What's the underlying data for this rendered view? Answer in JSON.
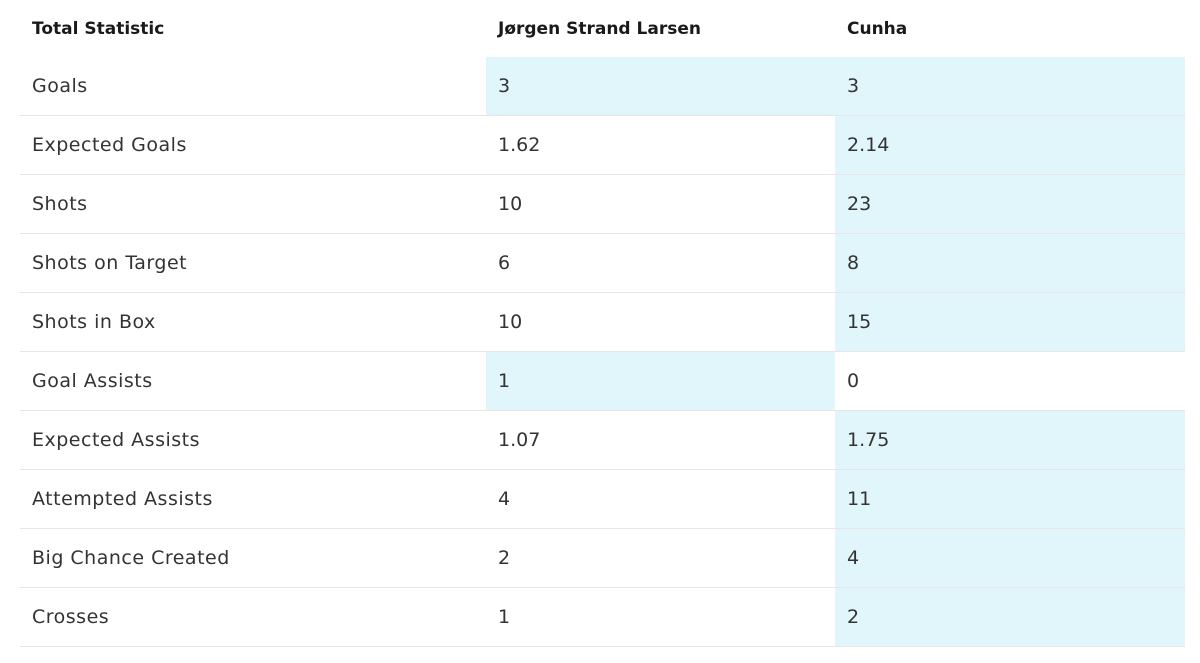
{
  "table": {
    "headers": [
      "Total Statistic",
      "Jørgen Strand Larsen",
      "Cunha"
    ],
    "highlight_color": "#e0f6fb",
    "rows": [
      {
        "label": "Goals",
        "player1": "3",
        "player2": "3",
        "leader": "both"
      },
      {
        "label": "Expected Goals",
        "player1": "1.62",
        "player2": "2.14",
        "leader": "player2"
      },
      {
        "label": "Shots",
        "player1": "10",
        "player2": "23",
        "leader": "player2"
      },
      {
        "label": "Shots on Target",
        "player1": "6",
        "player2": "8",
        "leader": "player2"
      },
      {
        "label": "Shots in Box",
        "player1": "10",
        "player2": "15",
        "leader": "player2"
      },
      {
        "label": "Goal Assists",
        "player1": "1",
        "player2": "0",
        "leader": "player1"
      },
      {
        "label": "Expected Assists",
        "player1": "1.07",
        "player2": "1.75",
        "leader": "player2"
      },
      {
        "label": "Attempted Assists",
        "player1": "4",
        "player2": "11",
        "leader": "player2"
      },
      {
        "label": "Big Chance Created",
        "player1": "2",
        "player2": "4",
        "leader": "player2"
      },
      {
        "label": "Crosses",
        "player1": "1",
        "player2": "2",
        "leader": "player2"
      }
    ]
  }
}
